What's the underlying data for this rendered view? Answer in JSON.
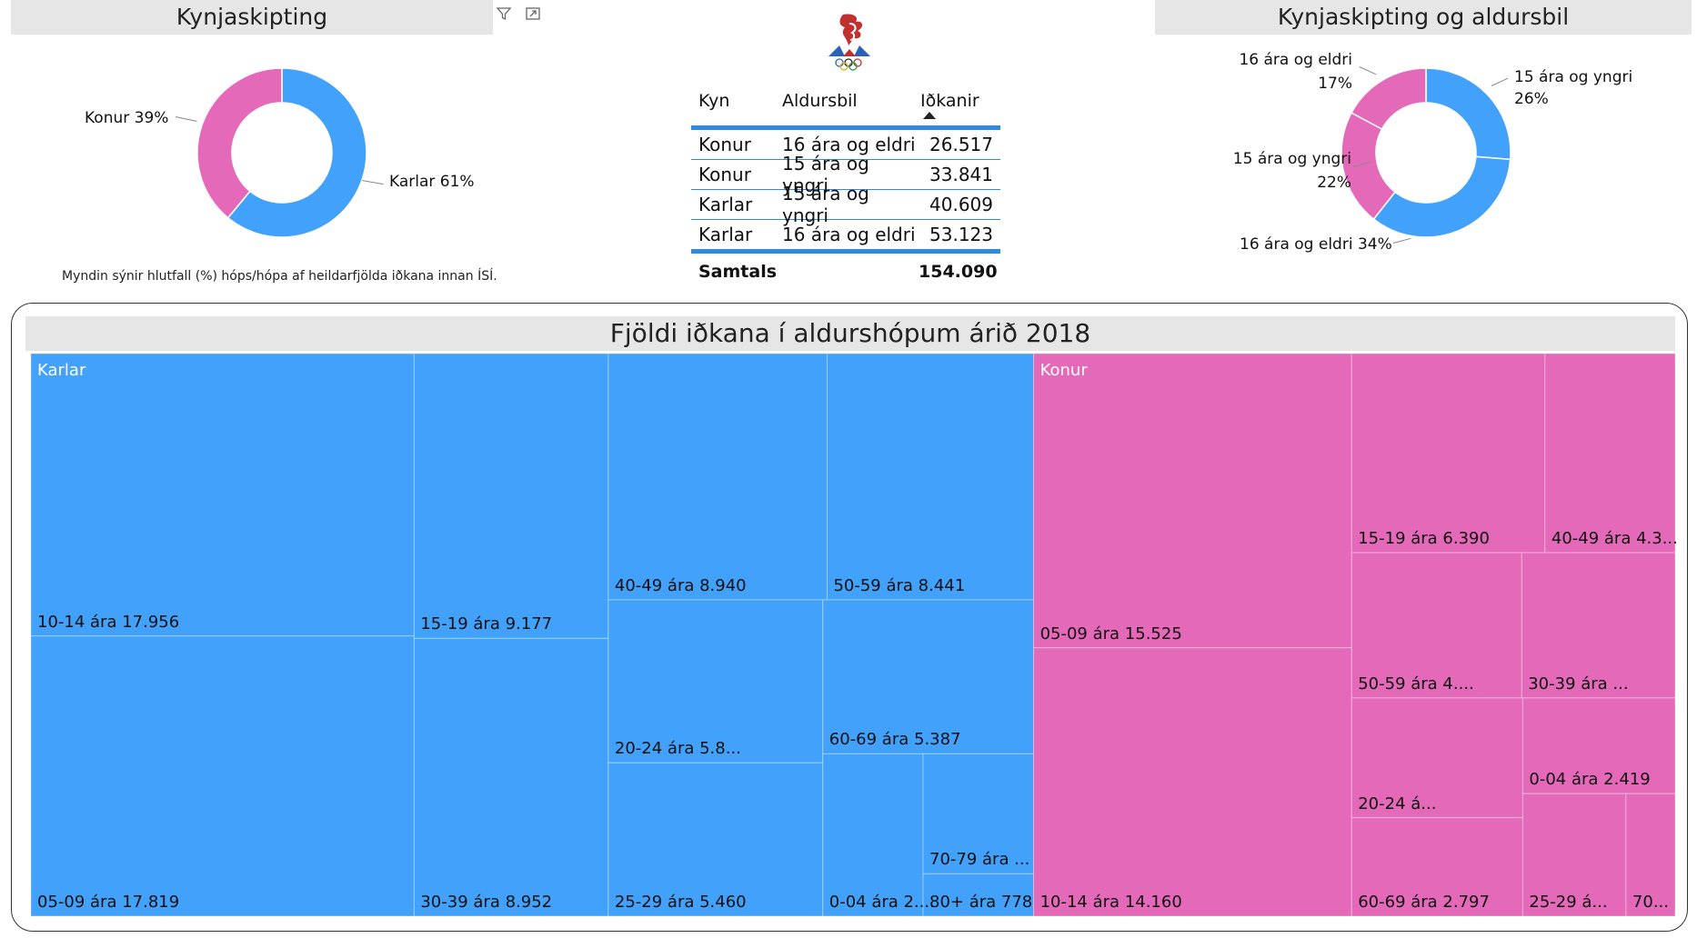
{
  "header": {
    "left_title": "Kynjaskipting",
    "right_title": "Kynjaskipting og aldursbil",
    "caption": "Myndin sýnir hlutfall (%) hóps/hópa af heildarfjölda iðkana innan ÍSÍ."
  },
  "colors": {
    "karlar": "#42a2fb",
    "konur": "#e569b9",
    "table_rule": "#2d8ae0"
  },
  "icons": {
    "filter": "filter-icon",
    "focus": "focus-mode-icon",
    "logo": "isi-olympic-logo"
  },
  "table": {
    "headers": [
      "Kyn",
      "Aldursbil",
      "Iðkanir"
    ],
    "rows": [
      [
        "Konur",
        "16 ára og eldri",
        "26.517"
      ],
      [
        "Konur",
        "15 ára og yngri",
        "33.841"
      ],
      [
        "Karlar",
        "15 ára og yngri",
        "40.609"
      ],
      [
        "Karlar",
        "16 ára og eldri",
        "53.123"
      ]
    ],
    "total_label": "Samtals",
    "total_value": "154.090"
  },
  "chart_data": [
    {
      "type": "pie",
      "title": "Kynjaskipting",
      "categories": [
        "Karlar",
        "Konur"
      ],
      "values": [
        61,
        39
      ],
      "labels": [
        "Karlar 61%",
        "Konur 39%"
      ],
      "colors": [
        "#42a2fb",
        "#e569b9"
      ]
    },
    {
      "type": "pie",
      "title": "Kynjaskipting og aldursbil",
      "categories": [
        "15 ára og yngri",
        "16 ára og eldri",
        "15 ára og yngri",
        "16 ára og eldri"
      ],
      "groups": [
        "Karlar",
        "Karlar",
        "Konur",
        "Konur"
      ],
      "values": [
        26,
        34,
        22,
        17
      ],
      "labels": [
        [
          "15 ára og yngri",
          "26%"
        ],
        [
          "16 ára og eldri 34%"
        ],
        [
          "15 ára og yngri",
          "22%"
        ],
        [
          "16 ára og eldri",
          "17%"
        ]
      ],
      "colors": [
        "#42a2fb",
        "#42a2fb",
        "#e569b9",
        "#e569b9"
      ]
    },
    {
      "type": "treemap",
      "title": "Fjöldi iðkana í aldurshópum árið 2018",
      "groups": [
        {
          "name": "Karlar",
          "color": "#42a2fb",
          "items": [
            {
              "label": "10-14 ára 17.956",
              "value": 17956
            },
            {
              "label": "05-09 ára 17.819",
              "value": 17819
            },
            {
              "label": "15-19 ára 9.177",
              "value": 9177
            },
            {
              "label": "30-39 ára 8.952",
              "value": 8952
            },
            {
              "label": "40-49 ára 8.940",
              "value": 8940
            },
            {
              "label": "50-59 ára 8.441",
              "value": 8441
            },
            {
              "label": "20-24 ára 5.8...",
              "value": 5800
            },
            {
              "label": "25-29 ára 5.460",
              "value": 5460
            },
            {
              "label": "60-69 ára 5.387",
              "value": 5387
            },
            {
              "label": "0-04 ára 2....",
              "value": 2700
            },
            {
              "label": "70-79 ára ...",
              "value": 2200
            },
            {
              "label": "80+ ára 778",
              "value": 778
            }
          ]
        },
        {
          "name": "Konur",
          "color": "#e569b9",
          "items": [
            {
              "label": "05-09 ára 15.525",
              "value": 15525
            },
            {
              "label": "10-14 ára 14.160",
              "value": 14160
            },
            {
              "label": "15-19 ára 6.390",
              "value": 6390
            },
            {
              "label": "40-49 ára 4.3...",
              "value": 4300
            },
            {
              "label": "50-59 ára 4....",
              "value": 4100
            },
            {
              "label": "30-39 ára ...",
              "value": 3700
            },
            {
              "label": "20-24 á...",
              "value": 3400
            },
            {
              "label": "60-69 ára 2.797",
              "value": 2797
            },
            {
              "label": "0-04 ára 2.419",
              "value": 2419
            },
            {
              "label": "25-29 á...",
              "value": 2100
            },
            {
              "label": "70...",
              "value": 1000
            }
          ]
        }
      ]
    }
  ]
}
